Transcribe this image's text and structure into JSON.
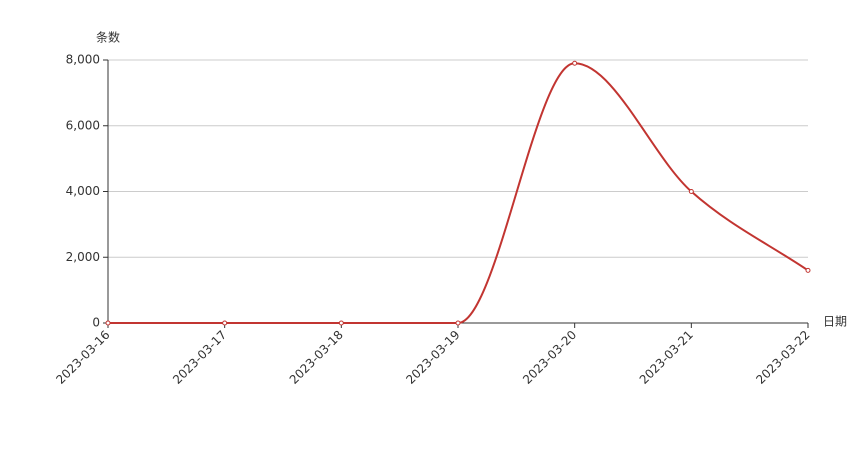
{
  "chart_data": {
    "type": "line",
    "y_axis_name": "条数",
    "x_axis_name": "日期",
    "categories": [
      "2023-03-16",
      "2023-03-17",
      "2023-03-18",
      "2023-03-19",
      "2023-03-20",
      "2023-03-21",
      "2023-03-22"
    ],
    "series": [
      {
        "name": "条数",
        "color": "#c23531",
        "values": [
          0,
          0,
          0,
          0,
          7900,
          4000,
          1600
        ]
      }
    ],
    "ylim": [
      0,
      8000
    ],
    "yticks": [
      0,
      {
        "value": 2000,
        "label": "2,000"
      },
      {
        "value": 4000,
        "label": "4,000"
      },
      {
        "value": 6000,
        "label": "6,000"
      },
      {
        "value": 8000,
        "label": "8,000"
      }
    ],
    "grid": true,
    "smooth": true
  }
}
